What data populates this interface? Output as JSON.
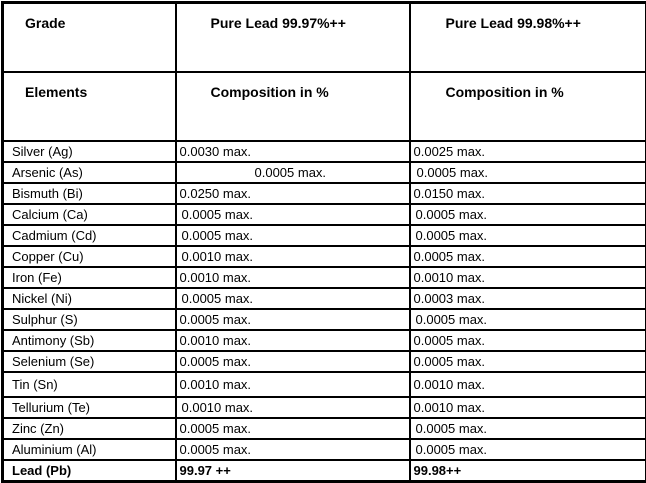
{
  "table": {
    "header": {
      "grade_label": "Grade",
      "grades": [
        "Pure Lead 99.97%++",
        "Pure Lead 99.98%++"
      ],
      "elements_label": "Elements",
      "composition_labels": [
        "Composition in %",
        "Composition in %"
      ]
    },
    "rows": [
      {
        "element": "Silver (Ag)",
        "g9997": "0.0030 max.",
        "g9998": "0.0025 max."
      },
      {
        "element": "Arsenic (As)",
        "g9997": "0.0005 max.",
        "g9998": "0.0005 max."
      },
      {
        "element": "Bismuth (Bi)",
        "g9997": "0.0250 max.",
        "g9998": "0.0150 max."
      },
      {
        "element": "Calcium (Ca)",
        "g9997": "0.0005 max.",
        "g9998": "0.0005 max."
      },
      {
        "element": "Cadmium (Cd)",
        "g9997": "0.0005 max.",
        "g9998": "0.0005 max."
      },
      {
        "element": "Copper (Cu)",
        "g9997": "0.0010 max.",
        "g9998": "0.0005 max."
      },
      {
        "element": "Iron (Fe)",
        "g9997": "0.0010 max.",
        "g9998": "0.0010 max."
      },
      {
        "element": "Nickel (Ni)",
        "g9997": "0.0005 max.",
        "g9998": "0.0003 max."
      },
      {
        "element": "Sulphur (S)",
        "g9997": "0.0005 max.",
        "g9998": "0.0005 max."
      },
      {
        "element": "Antimony (Sb)",
        "g9997": "0.0010 max.",
        "g9998": "0.0005 max."
      },
      {
        "element": "Selenium (Se)",
        "g9997": "0.0005 max.",
        "g9998": "0.0005 max."
      },
      {
        "element": "Tin (Sn)",
        "g9997": "0.0010 max.",
        "g9998": "0.0010 max."
      },
      {
        "element": "Tellurium (Te)",
        "g9997": "0.0010 max.",
        "g9998": "0.0010 max."
      },
      {
        "element": "Zinc (Zn)",
        "g9997": "0.0005 max.",
        "g9998": "0.0005 max."
      },
      {
        "element": "Aluminium (Al)",
        "g9997": "0.0005 max.",
        "g9998": "0.0005 max."
      }
    ],
    "total": {
      "element": "Lead (Pb)",
      "g9997": "99.97 ++",
      "g9998": "99.98++"
    }
  }
}
